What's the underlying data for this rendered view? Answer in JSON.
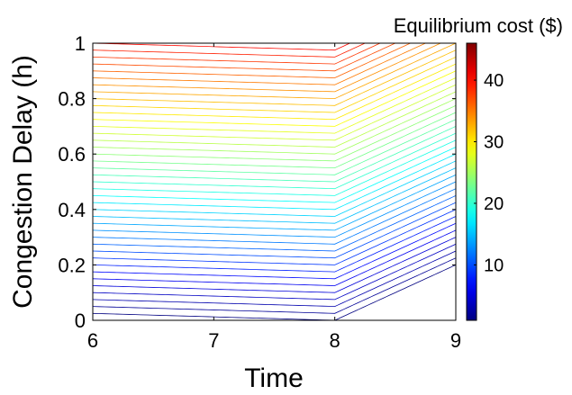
{
  "chart_data": {
    "type": "contour",
    "xlabel": "Time",
    "ylabel": "Congestion Delay (h)",
    "colorbar_title": "Equilibrium cost ($)",
    "xlim": [
      6,
      9
    ],
    "ylim": [
      0,
      1
    ],
    "x_ticks": [
      "6",
      "7",
      "8",
      "9"
    ],
    "y_ticks": [
      "0",
      "0.2",
      "0.4",
      "0.6",
      "0.8",
      "1"
    ],
    "colorbar_range": [
      1,
      46
    ],
    "colorbar_ticks": [
      "10",
      "20",
      "30",
      "40"
    ],
    "colormap": "jet",
    "grid": false,
    "levels": {
      "min": 1,
      "max": 46,
      "step": 1
    },
    "surface": {
      "description_of_values": "cost(t, d)",
      "kink_time": 8,
      "before_kink": {
        "base_at_t6_d0": 0,
        "slope_time": 0.5,
        "slope_delay": 40
      },
      "after_kink": {
        "slope_time": 8,
        "slope_delay": 40
      }
    },
    "colors": {
      "axis": "#000000",
      "background": "#ffffff"
    }
  }
}
